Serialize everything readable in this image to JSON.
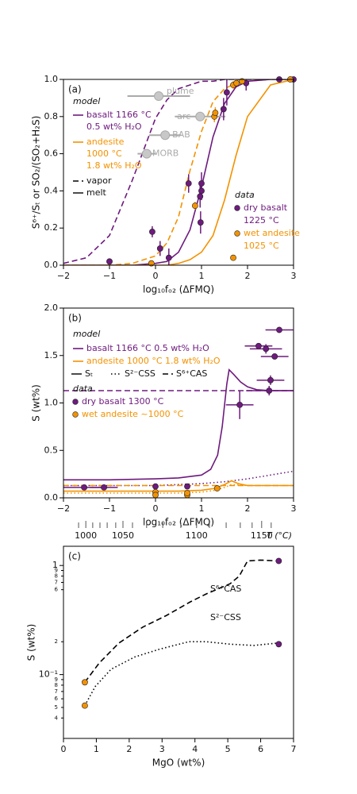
{
  "chart_data": [
    {
      "type": "line",
      "label": "(a)",
      "xlabel": "log₁₀fₒ₂ (ΔFMQ)",
      "ylabel": "S⁶⁺/Sₜ or SO₂/(SO₂+H₂S)",
      "xlim": [
        -2,
        3
      ],
      "xticks": [
        {
          "value": -2,
          "label": "−2"
        },
        {
          "value": -1,
          "label": "−1"
        },
        0,
        1,
        2,
        3
      ],
      "ylim": [
        0,
        1
      ],
      "yticks": [
        {
          "value": 0,
          "label": "0.0"
        },
        0.2,
        0.4,
        0.6,
        0.8,
        {
          "value": 1,
          "label": "1.0"
        }
      ],
      "model": {
        "title": "model",
        "compositions": [
          {
            "name": [
              "basalt 1166 °C",
              "0.5 wt% H₂O"
            ],
            "color": "#6e1a7e"
          },
          {
            "name": [
              "andesite",
              "1000 °C",
              "1.8 wt% H₂O"
            ],
            "color": "#f39200"
          }
        ],
        "phases": [
          {
            "name": "vapor",
            "dash": "dashed"
          },
          {
            "name": "melt",
            "dash": "solid"
          }
        ]
      },
      "curves": [
        {
          "composition": 0,
          "phase": 0,
          "x": [
            -2,
            -1.5,
            -1,
            -0.5,
            0,
            0.25,
            0.5,
            0.75,
            1,
            1.25,
            1.5,
            1.75,
            2,
            2.5,
            3
          ],
          "values": [
            0.01,
            0.04,
            0.16,
            0.46,
            0.79,
            0.89,
            0.95,
            0.97,
            0.99,
            0.99,
            1,
            1,
            1,
            1,
            1
          ]
        },
        {
          "composition": 1,
          "phase": 0,
          "x": [
            -2,
            -1.5,
            -1,
            -0.5,
            0,
            0.25,
            0.5,
            0.75,
            1,
            1.25,
            1.5,
            1.75,
            2,
            2.5,
            3
          ],
          "values": [
            0,
            0,
            0,
            0.01,
            0.05,
            0.12,
            0.26,
            0.51,
            0.72,
            0.88,
            0.95,
            0.98,
            0.99,
            1,
            1
          ]
        },
        {
          "composition": 0,
          "phase": 1,
          "x": [
            -2,
            -1.5,
            -1,
            -0.5,
            0,
            0.25,
            0.5,
            0.75,
            1,
            1.25,
            1.5,
            1.75,
            2,
            2.5,
            3
          ],
          "values": [
            0,
            0,
            0,
            0,
            0.01,
            0.02,
            0.07,
            0.19,
            0.42,
            0.69,
            0.87,
            0.96,
            0.99,
            1,
            1
          ]
        },
        {
          "composition": 1,
          "phase": 1,
          "x": [
            -2,
            -1.5,
            -1,
            -0.5,
            0,
            0.25,
            0.5,
            0.75,
            1,
            1.25,
            1.5,
            1.75,
            2,
            2.5,
            3
          ],
          "values": [
            0,
            0,
            0,
            0,
            0,
            0,
            0.01,
            0.03,
            0.07,
            0.16,
            0.35,
            0.59,
            0.8,
            0.97,
            1
          ]
        }
      ],
      "references": {
        "color": "#aaaaaa",
        "labels": [
          "plume",
          "arc",
          "BAB",
          "MORB"
        ],
        "x": [
          0.07,
          0.97,
          0.21,
          -0.19
        ],
        "values": [
          0.91,
          0.8,
          0.7,
          0.6
        ],
        "xerr": [
          0.68,
          0.55,
          0.35,
          0.2
        ]
      },
      "data": {
        "title": "data",
        "groups": [
          {
            "name": [
              "dry basalt",
              "1225 °C"
            ],
            "color": "#6e1a7e",
            "x": [
              -1,
              -0.07,
              0.1,
              0.29,
              0.72,
              0.97,
              1,
              1,
              0.98,
              1.48,
              1.55,
              1.97,
              2.69,
              3
            ],
            "values": [
              0.02,
              0.18,
              0.09,
              0.04,
              0.44,
              0.37,
              0.4,
              0.44,
              0.23,
              0.84,
              0.93,
              0.98,
              1,
              1
            ],
            "yerr": [
              0.01,
              0.03,
              0.04,
              0.05,
              0.05,
              0.06,
              0.05,
              0.06,
              0.06,
              0.06,
              0.07,
              0.04,
              0.01,
              0.01
            ]
          },
          {
            "name": [
              "wet andesite",
              "1025 °C"
            ],
            "color": "#f39200",
            "x": [
              -0.09,
              0.86,
              1.28,
              1.3,
              1.69,
              1.76,
              1.88,
              1.69,
              2.93
            ],
            "values": [
              0.01,
              0.32,
              0.8,
              0.82,
              0.97,
              0.98,
              0.99,
              0.04,
              1
            ],
            "yerr": [
              0.01,
              0.02,
              0.03,
              0.03,
              0.02,
              0.01,
              0.01,
              0.01,
              0.01
            ]
          }
        ]
      }
    },
    {
      "type": "line",
      "label": "(b)",
      "xlabel": "log₁₀fₒ₂ (ΔFMQ)",
      "ylabel": "S (wt%)",
      "xlim": [
        -2,
        3
      ],
      "xticks": [
        {
          "value": -2,
          "label": "−2"
        },
        {
          "value": -1,
          "label": "−1"
        },
        0,
        1,
        2,
        3
      ],
      "ylim": [
        0,
        2
      ],
      "yticks": [
        {
          "value": 0,
          "label": "0.0"
        },
        0.5,
        {
          "value": 1,
          "label": "1.0"
        },
        1.5,
        {
          "value": 2,
          "label": "2.0"
        }
      ],
      "model": {
        "title": "model",
        "compositions": [
          {
            "name": [
              "basalt 1166 °C 0.5 wt% H₂O"
            ],
            "color": "#6e1a7e"
          },
          {
            "name": [
              "andesite 1000 °C 1.8 wt% H₂O"
            ],
            "color": "#f39200"
          }
        ],
        "phases": [
          {
            "name": "Sₜ",
            "dash": "solid"
          },
          {
            "name": "S²⁻CSS",
            "dash": "dotted"
          },
          {
            "name": "S⁶⁺CAS",
            "dash": "dashed"
          }
        ]
      },
      "curves": [
        {
          "composition": 0,
          "phase": 0,
          "x": [
            -2,
            -1,
            0,
            0.5,
            1,
            1.2,
            1.35,
            1.45,
            1.55,
            1.6,
            1.7,
            1.85,
            2,
            2.2,
            2.5,
            3
          ],
          "values": [
            0.19,
            0.19,
            0.2,
            0.21,
            0.24,
            0.3,
            0.45,
            0.75,
            1.2,
            1.35,
            1.3,
            1.22,
            1.17,
            1.14,
            1.13,
            1.13
          ]
        },
        {
          "composition": 0,
          "phase": 1,
          "x": [
            -2,
            -1,
            0,
            0.5,
            1,
            1.5,
            2,
            2.5,
            3
          ],
          "values": [
            0.13,
            0.13,
            0.13,
            0.14,
            0.15,
            0.17,
            0.2,
            0.24,
            0.28
          ]
        },
        {
          "composition": 0,
          "phase": 2,
          "x": [
            -2,
            3
          ],
          "values": [
            1.13,
            1.13
          ]
        },
        {
          "composition": 1,
          "phase": 0,
          "x": [
            -2,
            -1,
            0,
            0.5,
            1,
            1.3,
            1.5,
            1.65,
            1.8,
            2,
            2.3,
            3
          ],
          "values": [
            0.07,
            0.07,
            0.07,
            0.07,
            0.08,
            0.1,
            0.14,
            0.18,
            0.15,
            0.13,
            0.13,
            0.13
          ]
        },
        {
          "composition": 1,
          "phase": 1,
          "x": [
            -2,
            -1,
            0,
            0.5,
            1,
            1.3,
            1.5,
            1.65,
            2,
            2.5,
            3
          ],
          "values": [
            0.05,
            0.05,
            0.05,
            0.05,
            0.06,
            0.08,
            0.11,
            0.14,
            0.13,
            0.13,
            0.13
          ]
        },
        {
          "composition": 1,
          "phase": 2,
          "x": [
            -2,
            3
          ],
          "values": [
            0.13,
            0.13
          ]
        }
      ],
      "data": {
        "title": "data",
        "groups": [
          {
            "name": [
              "dry basalt 1300 °C"
            ],
            "color": "#6e1a7e",
            "x": [
              -1.55,
              -1.12,
              0,
              0.69,
              1.83,
              2.24,
              2.4,
              2.59,
              2.5,
              2.47,
              2.69
            ],
            "values": [
              0.11,
              0.11,
              0.12,
              0.12,
              0.98,
              1.6,
              1.57,
              1.49,
              1.24,
              1.13,
              1.77
            ],
            "xerr": [
              0.5,
              0.3,
              0.05,
              0.05,
              0.3,
              0.3,
              0.35,
              0.3,
              0.3,
              0.5,
              0.3
            ],
            "yerr": [
              0.02,
              0.02,
              0.02,
              0.02,
              0.15,
              0.03,
              0.05,
              0.03,
              0.05,
              0.05,
              0.03
            ]
          },
          {
            "name": [
              "wet andesite ~1000 °C"
            ],
            "color": "#f39200",
            "x": [
              0,
              0,
              0.69,
              0.69,
              1.34
            ],
            "values": [
              0.06,
              0.03,
              0.03,
              0.05,
              0.1
            ],
            "xerr": [
              0,
              0,
              0,
              0,
              0.05
            ],
            "yerr": [
              0.01,
              0.01,
              0.01,
              0.01,
              0.03
            ]
          }
        ]
      }
    },
    {
      "type": "line",
      "label": "(c)",
      "xlabel": "MgO (wt%)",
      "ylabel": "S (wt%)",
      "xlim": [
        0,
        7
      ],
      "xticks": [
        0,
        1,
        2,
        3,
        4,
        5,
        6,
        7
      ],
      "ylim": [
        0.026,
        1.5
      ],
      "ylog": true,
      "yticks": [
        1,
        {
          "value": 0.9,
          "label": "9"
        },
        {
          "value": 0.8,
          "label": "8"
        },
        {
          "value": 0.7,
          "label": "7"
        },
        {
          "value": 0.6,
          "label": "6"
        },
        {
          "value": 0.2,
          "label": "2"
        },
        {
          "value": 0.1,
          "label": "10⁻¹"
        },
        {
          "value": 0.09,
          "label": "9"
        },
        {
          "value": 0.08,
          "label": "8"
        },
        {
          "value": 0.07,
          "label": "7"
        },
        {
          "value": 0.06,
          "label": "6"
        },
        {
          "value": 0.05,
          "label": "5"
        },
        {
          "value": 0.04,
          "label": "4"
        }
      ],
      "top_axis": {
        "label": "T (°C)",
        "ticks": [
          {
            "value": 1000,
            "mgo": 0.68
          },
          {
            "value": 1050,
            "mgo": 1.81
          },
          {
            "value": 1100,
            "mgo": 4.05
          },
          {
            "value": 1150,
            "mgo": 6.03
          }
        ],
        "minor": [
          {
            "value": 990,
            "mgo": 0.46
          },
          {
            "value": 1010,
            "mgo": 0.89
          },
          {
            "value": 1020,
            "mgo": 1.11
          },
          {
            "value": 1030,
            "mgo": 1.33
          },
          {
            "value": 1040,
            "mgo": 1.59
          },
          {
            "value": 1060,
            "mgo": 2.1
          },
          {
            "value": 1070,
            "mgo": 2.53
          },
          {
            "value": 1080,
            "mgo": 3.02
          },
          {
            "value": 1090,
            "mgo": 3.57
          },
          {
            "value": 1110,
            "mgo": 4.44
          },
          {
            "value": 1120,
            "mgo": 4.95
          },
          {
            "value": 1130,
            "mgo": 5.38
          },
          {
            "value": 1140,
            "mgo": 5.74
          },
          {
            "value": 1160,
            "mgo": 6.32
          }
        ]
      },
      "curves": [
        {
          "name": "S⁶⁺CAS",
          "color": "#000000",
          "dash": "dashed",
          "x": [
            0.65,
            1.09,
            1.69,
            2.41,
            3.14,
            3.86,
            4.34,
            5.07,
            5.35,
            5.6,
            6.0,
            6.55
          ],
          "values": [
            0.085,
            0.128,
            0.195,
            0.272,
            0.349,
            0.464,
            0.548,
            0.68,
            0.8,
            1.1,
            1.12,
            1.1
          ]
        },
        {
          "name": "S²⁻CSS",
          "color": "#000000",
          "dash": "dotted",
          "x": [
            0.65,
            0.97,
            1.45,
            2.17,
            2.9,
            3.81,
            4.34,
            5.07,
            5.79,
            6.54
          ],
          "values": [
            0.052,
            0.078,
            0.112,
            0.145,
            0.17,
            0.2,
            0.2,
            0.19,
            0.185,
            0.195
          ]
        }
      ],
      "points": [
        {
          "color": "#f39200",
          "x": [
            0.65,
            0.65
          ],
          "values": [
            0.085,
            0.052
          ]
        },
        {
          "color": "#6e1a7e",
          "x": [
            6.55,
            6.55
          ],
          "values": [
            1.1,
            0.19
          ]
        }
      ]
    }
  ]
}
